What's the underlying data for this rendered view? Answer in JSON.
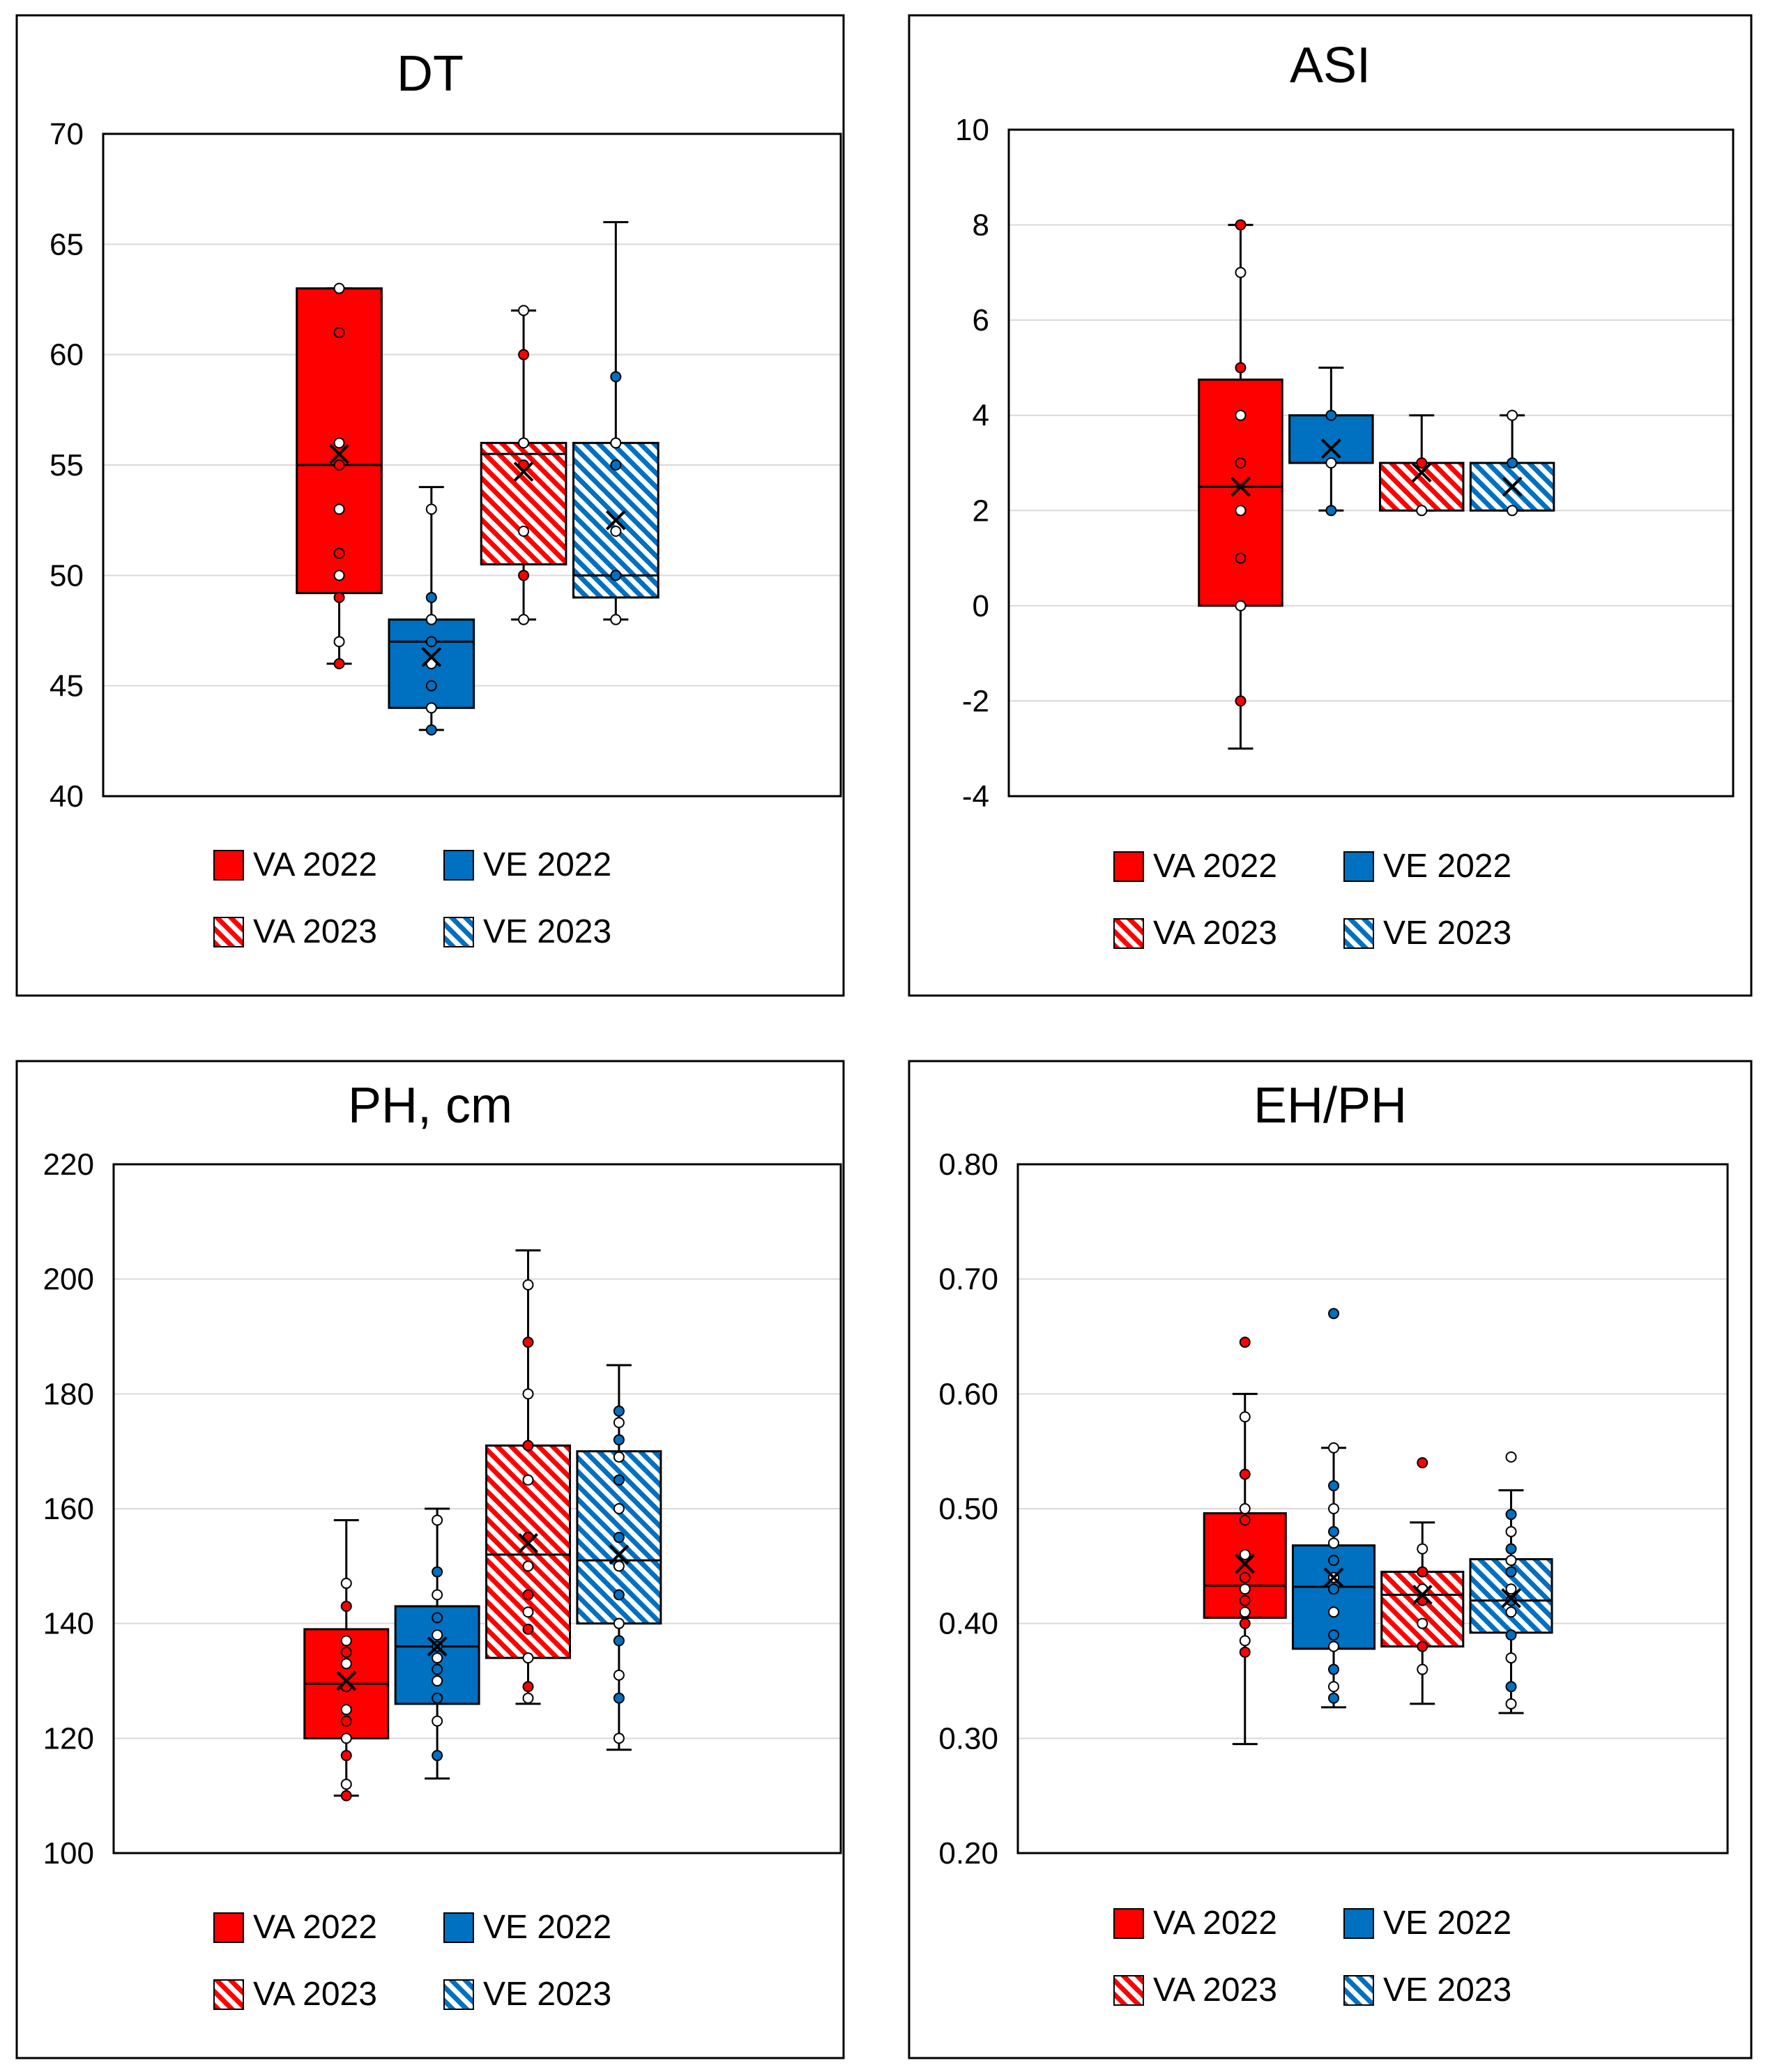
{
  "colors": {
    "va": "#ff0000",
    "ve": "#0070c0",
    "grid": "#d9d9d9",
    "border": "#000000"
  },
  "legend": [
    {
      "label": "VA 2022",
      "color": "#ff0000",
      "pattern": "solid"
    },
    {
      "label": "VE 2022",
      "color": "#0070c0",
      "pattern": "solid"
    },
    {
      "label": "VA 2023",
      "color": "#ff0000",
      "pattern": "hatch"
    },
    {
      "label": "VE 2023",
      "color": "#0070c0",
      "pattern": "hatch"
    }
  ],
  "chart_data": [
    {
      "id": "dt",
      "type": "box",
      "title": "DT",
      "ylim": [
        40,
        70
      ],
      "yticks": [
        "40",
        "45",
        "50",
        "55",
        "60",
        "65",
        "70"
      ],
      "ytick_values": [
        40,
        45,
        50,
        55,
        60,
        65,
        70
      ],
      "grid": true,
      "legend_position": "bottom",
      "series": [
        {
          "name": "VA 2022",
          "min": 46,
          "q1": 49.2,
          "median": 55,
          "q3": 63,
          "max": 63,
          "mean": 55.5,
          "points": [
            46,
            47,
            49,
            50,
            51,
            53,
            55,
            56,
            61,
            63
          ]
        },
        {
          "name": "VE 2022",
          "min": 43,
          "q1": 44,
          "median": 47,
          "q3": 48,
          "max": 54,
          "mean": 46.3,
          "points": [
            43,
            44,
            45,
            46,
            47,
            48,
            49,
            53
          ]
        },
        {
          "name": "VA 2023",
          "min": 48,
          "q1": 50.5,
          "median": 55.5,
          "q3": 56,
          "max": 62,
          "mean": 54.7,
          "points": [
            48,
            50,
            52,
            55,
            56,
            60,
            62
          ]
        },
        {
          "name": "VE 2023",
          "min": 48,
          "q1": 49,
          "median": 50,
          "q3": 56,
          "max": 66,
          "mean": 52.5,
          "points": [
            48,
            50,
            52,
            55,
            56,
            59
          ]
        }
      ]
    },
    {
      "id": "asi",
      "type": "box",
      "title": "ASI",
      "ylim": [
        -4,
        10
      ],
      "yticks": [
        "-4",
        "-2",
        "0",
        "2",
        "4",
        "6",
        "8",
        "10"
      ],
      "ytick_values": [
        -4,
        -2,
        0,
        2,
        4,
        6,
        8,
        10
      ],
      "grid": true,
      "legend_position": "bottom",
      "series": [
        {
          "name": "VA 2022",
          "min": -3,
          "q1": 0,
          "median": 2.5,
          "q3": 4.75,
          "max": 8,
          "mean": 2.5,
          "points": [
            -2,
            0,
            1,
            2,
            3,
            4,
            5,
            7,
            8
          ]
        },
        {
          "name": "VE 2022",
          "min": 2,
          "q1": 3,
          "median": 3,
          "q3": 4,
          "max": 5,
          "mean": 3.3,
          "points": [
            2,
            3,
            4
          ]
        },
        {
          "name": "VA 2023",
          "min": 2,
          "q1": 2,
          "median": 3,
          "q3": 3,
          "max": 4,
          "mean": 2.8,
          "points": [
            2,
            3
          ]
        },
        {
          "name": "VE 2023",
          "min": 2,
          "q1": 2,
          "median": 3,
          "q3": 3,
          "max": 4,
          "mean": 2.5,
          "points": [
            2,
            3,
            4
          ]
        }
      ]
    },
    {
      "id": "ph",
      "type": "box",
      "title": "PH, cm",
      "ylim": [
        100,
        220
      ],
      "yticks": [
        "100",
        "120",
        "140",
        "160",
        "180",
        "200",
        "220"
      ],
      "ytick_values": [
        100,
        120,
        140,
        160,
        180,
        200,
        220
      ],
      "grid": true,
      "legend_position": "bottom",
      "series": [
        {
          "name": "VA 2022",
          "min": 110,
          "q1": 120,
          "median": 129.5,
          "q3": 139,
          "max": 158,
          "mean": 130,
          "points": [
            110,
            112,
            117,
            120,
            123,
            125,
            129,
            133,
            135,
            137,
            143,
            147
          ]
        },
        {
          "name": "VE 2022",
          "min": 113,
          "q1": 126,
          "median": 136,
          "q3": 143,
          "max": 160,
          "mean": 136,
          "points": [
            117,
            123,
            127,
            130,
            132,
            134,
            136,
            138,
            141,
            145,
            149,
            158
          ]
        },
        {
          "name": "VA 2023",
          "min": 126,
          "q1": 134,
          "median": 152,
          "q3": 171,
          "max": 205,
          "mean": 154,
          "points": [
            127,
            129,
            134,
            139,
            142,
            145,
            150,
            155,
            165,
            171,
            180,
            189,
            199
          ]
        },
        {
          "name": "VE 2023",
          "min": 118,
          "q1": 140,
          "median": 151,
          "q3": 170,
          "max": 185,
          "mean": 152,
          "points": [
            120,
            127,
            131,
            137,
            140,
            145,
            150,
            155,
            160,
            165,
            169,
            172,
            175,
            177
          ]
        }
      ]
    },
    {
      "id": "ehph",
      "type": "box",
      "title": "EH/PH",
      "ylim": [
        0.2,
        0.8
      ],
      "yticks": [
        "0.20",
        "0.30",
        "0.40",
        "0.50",
        "0.60",
        "0.70",
        "0.80"
      ],
      "ytick_values": [
        0.2,
        0.3,
        0.4,
        0.5,
        0.6,
        0.7,
        0.8
      ],
      "grid": true,
      "legend_position": "bottom",
      "series": [
        {
          "name": "VA 2022",
          "min": 0.295,
          "q1": 0.405,
          "median": 0.433,
          "q3": 0.496,
          "max": 0.6,
          "mean": 0.452,
          "points": [
            0.375,
            0.385,
            0.4,
            0.41,
            0.42,
            0.43,
            0.44,
            0.46,
            0.49,
            0.5,
            0.53,
            0.58,
            0.645
          ]
        },
        {
          "name": "VE 2022",
          "min": 0.327,
          "q1": 0.378,
          "median": 0.432,
          "q3": 0.468,
          "max": 0.553,
          "mean": 0.44,
          "points": [
            0.335,
            0.345,
            0.36,
            0.38,
            0.39,
            0.41,
            0.43,
            0.44,
            0.455,
            0.47,
            0.48,
            0.5,
            0.52,
            0.553,
            0.67
          ]
        },
        {
          "name": "VA 2023",
          "min": 0.33,
          "q1": 0.38,
          "median": 0.425,
          "q3": 0.445,
          "max": 0.488,
          "mean": 0.425,
          "points": [
            0.36,
            0.38,
            0.4,
            0.42,
            0.43,
            0.445,
            0.465,
            0.54
          ]
        },
        {
          "name": "VE 2023",
          "min": 0.322,
          "q1": 0.392,
          "median": 0.42,
          "q3": 0.456,
          "max": 0.516,
          "mean": 0.422,
          "points": [
            0.33,
            0.345,
            0.37,
            0.39,
            0.41,
            0.42,
            0.43,
            0.445,
            0.455,
            0.465,
            0.48,
            0.495,
            0.545
          ]
        }
      ]
    }
  ]
}
